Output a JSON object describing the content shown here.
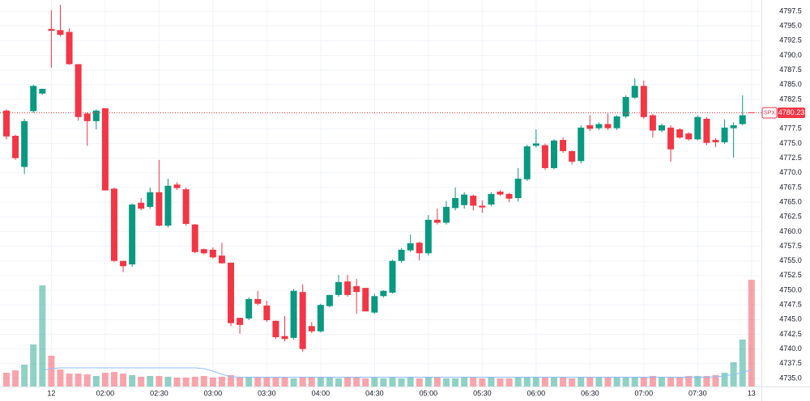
{
  "chart_data": {
    "type": "candlestick",
    "open": [
      4780.6,
      4776.3,
      4771,
      4780.5,
      4783.5,
      4794.5,
      4794.3,
      4794,
      4788.5,
      4780.1,
      4778.8,
      4781,
      4767.3,
      4755,
      4754.4,
      4764.9,
      4764.2,
      4766.7,
      4761,
      4768,
      4767.2,
      4761.2,
      4757,
      4756.9,
      4755.9,
      4754.7,
      4745.3,
      4745.2,
      4748.5,
      4747.4,
      4744.8,
      4742.2,
      4741.9,
      4749.7,
      4743.9,
      4743,
      4747.3,
      4749.2,
      4751.5,
      4750.7,
      4750.4,
      4746.2,
      4749,
      4749.6,
      4755,
      4756.8,
      4758.1,
      4756.3,
      4762,
      4761.5,
      4764,
      4764.5,
      4766.1,
      4764.4,
      4764.6,
      4766.8,
      4766.4,
      4765.7,
      4768.9,
      4774.6,
      4774.7,
      4770.8,
      4775.6,
      4773.7,
      4772,
      4778.1,
      4777.6,
      4778.3,
      4777.6,
      4779.6,
      4782.8,
      4784.8,
      4779.8,
      4777.2,
      4777.7,
      4777.4,
      4776.7,
      4775.7,
      4779.2,
      4775.6,
      4775.2,
      4777.6,
      4778.3,
      4780.3
    ],
    "high": [
      4780.8,
      4776.5,
      4779.2,
      4785,
      4784.3,
      4797.7,
      4798.6,
      4794.6,
      4788.5,
      4780.3,
      4780.8,
      4781,
      4767.5,
      4755,
      4764.8,
      4765.7,
      4767.5,
      4772.2,
      4769,
      4768.4,
      4767.5,
      4761.3,
      4757.1,
      4757.3,
      4758.1,
      4754.7,
      4745.3,
      4748.8,
      4749.9,
      4748.2,
      4744.8,
      4745.6,
      4750.2,
      4751,
      4744.6,
      4747.7,
      4749.2,
      4752.6,
      4752.6,
      4751.9,
      4750.4,
      4749.4,
      4750,
      4755.2,
      4757.2,
      4759.5,
      4758.3,
      4762.8,
      4763.9,
      4765.2,
      4767.5,
      4766.7,
      4766.3,
      4765.3,
      4766.7,
      4767,
      4766.6,
      4770.8,
      4774.8,
      4777.4,
      4775,
      4775.7,
      4776,
      4773.8,
      4778.1,
      4779.8,
      4778.6,
      4780.1,
      4779.8,
      4783.2,
      4786.1,
      4785.7,
      4780,
      4778.4,
      4778.1,
      4777.6,
      4776.9,
      4779.8,
      4779.5,
      4775.9,
      4779.1,
      4778.6,
      4783.2,
      4780.3
    ],
    "low": [
      4775.7,
      4772.2,
      4769.8,
      4780.2,
      4783.3,
      4787.9,
      4793.2,
      4788.4,
      4778.9,
      4774.6,
      4777.4,
      4767,
      4754.8,
      4753.1,
      4754,
      4763.6,
      4763.9,
      4760.9,
      4760.7,
      4767.1,
      4761,
      4756.3,
      4756.1,
      4755.4,
      4754.5,
      4743.9,
      4742.6,
      4744.9,
      4747.4,
      4744.6,
      4741.7,
      4741.3,
      4741.6,
      4739.5,
      4742.7,
      4742.8,
      4747.1,
      4748.9,
      4748.9,
      4746,
      4746.4,
      4746,
      4748.8,
      4749.4,
      4754.7,
      4756.5,
      4755.1,
      4755.9,
      4761.2,
      4761.2,
      4763.6,
      4763.9,
      4763.6,
      4763.2,
      4764.3,
      4766.1,
      4765,
      4765.1,
      4768.6,
      4774.3,
      4770.5,
      4770.6,
      4773.4,
      4771.4,
      4771.6,
      4777.1,
      4777.3,
      4777.3,
      4777.3,
      4779.3,
      4782.6,
      4779.2,
      4776,
      4776.9,
      4771.9,
      4775.8,
      4775.5,
      4775.5,
      4774.7,
      4774.4,
      4774.9,
      4772.6,
      4778.1,
      4780.2
    ],
    "close": [
      4776.2,
      4772.5,
      4778.8,
      4784.8,
      4784.3,
      4794.2,
      4793.5,
      4788.5,
      4779.5,
      4778.8,
      4780.6,
      4767,
      4755,
      4754.1,
      4764.6,
      4763.9,
      4766.7,
      4761,
      4767.8,
      4767.4,
      4761.3,
      4756.5,
      4756.3,
      4755.6,
      4754.6,
      4744.4,
      4744.1,
      4748.5,
      4747.7,
      4744.9,
      4742,
      4741.7,
      4749.9,
      4740,
      4743,
      4747.5,
      4749.2,
      4751.4,
      4749.2,
      4749.7,
      4746.4,
      4749,
      4749.9,
      4755,
      4756.9,
      4758,
      4756.3,
      4762,
      4761.5,
      4764.2,
      4765.7,
      4766.3,
      4764.4,
      4764.1,
      4766.4,
      4766.3,
      4765.6,
      4769,
      4774.5,
      4775,
      4770.8,
      4775.5,
      4773.7,
      4771.9,
      4777.7,
      4777.5,
      4778.3,
      4777.6,
      4779.6,
      4782.9,
      4784.8,
      4779.5,
      4777.2,
      4778.1,
      4774,
      4776,
      4775.7,
      4779.5,
      4775.1,
      4775.2,
      4777.7,
      4778.1,
      4779.8,
      4780.23
    ],
    "volume": [
      17,
      20,
      27,
      52,
      125,
      38,
      21,
      16,
      16,
      15,
      13,
      17,
      18,
      16,
      14,
      12,
      13,
      13,
      12,
      11,
      11,
      12,
      13,
      11,
      12,
      14,
      12,
      11,
      12,
      11,
      12,
      11,
      10,
      11,
      12,
      11,
      12,
      10,
      11,
      11,
      10,
      11,
      10,
      11,
      10,
      11,
      10,
      12,
      11,
      10,
      10,
      11,
      11,
      10,
      11,
      10,
      10,
      11,
      11,
      12,
      11,
      12,
      11,
      10,
      12,
      11,
      12,
      11,
      12,
      12,
      12,
      11,
      13,
      12,
      11,
      12,
      13,
      13,
      13,
      14,
      17,
      30,
      58,
      132
    ],
    "volume_ma": [
      null,
      null,
      null,
      null,
      20,
      22,
      23,
      23,
      23,
      23,
      23,
      23,
      23,
      23,
      23,
      23,
      23,
      23,
      23,
      23,
      23,
      23,
      22,
      19,
      15,
      12,
      11.5,
      11.5,
      11.5,
      11.5,
      11.5,
      11.5,
      11.5,
      11.5,
      11.5,
      11.5,
      11.5,
      11.5,
      11.5,
      11.5,
      11.5,
      11.5,
      11.5,
      11.5,
      11.5,
      11.5,
      11.5,
      11.5,
      11.5,
      11.5,
      11.5,
      11.5,
      11.5,
      11.5,
      11.5,
      11.5,
      11.5,
      11.5,
      11.5,
      11.5,
      11.5,
      11.5,
      11.5,
      11.5,
      11.5,
      11.5,
      11.5,
      11.5,
      11.5,
      11.5,
      11.5,
      11.5,
      11.5,
      11.5,
      11.5,
      11.5,
      11.5,
      11.5,
      11.5,
      12,
      13,
      15,
      17,
      21
    ],
    "volume_lim": [
      0,
      478
    ],
    "up_color": "#089981",
    "down_color": "#f23645",
    "volume_ma_color": "#90bff9",
    "ylim": [
      4733.62,
      4799.43
    ],
    "yticks": [
      {
        "value": 4735,
        "label": "4735.0"
      },
      4737.5,
      {
        "value": 4740,
        "label": "4740.0"
      },
      4742.5,
      {
        "value": 4745,
        "label": "4745.0"
      },
      4747.5,
      {
        "value": 4750,
        "label": "4750.0"
      },
      4752.5,
      {
        "value": 4755,
        "label": "4755.0"
      },
      4757.5,
      {
        "value": 4760,
        "label": "4760.0"
      },
      4762.5,
      {
        "value": 4765,
        "label": "4765.0"
      },
      4767.5,
      {
        "value": 4770,
        "label": "4770.0"
      },
      4772.5,
      {
        "value": 4775,
        "label": "4775.0"
      },
      4777.5,
      {
        "value": 4780,
        "label": "4780.0"
      },
      4782.5,
      {
        "value": 4785,
        "label": "4785.0"
      },
      4787.5,
      {
        "value": 4790,
        "label": "4790.0"
      },
      4792.5,
      {
        "value": 4795,
        "label": "4795.0"
      },
      4797.5
    ],
    "xlim": [
      -0.72,
      84.1
    ],
    "xticks": [
      {
        "value": 5,
        "label": "12"
      },
      {
        "value": 11,
        "label": "02:00"
      },
      {
        "value": 17,
        "label": "02:30"
      },
      {
        "value": 23,
        "label": "03:00"
      },
      {
        "value": 29,
        "label": "03:30"
      },
      {
        "value": 35,
        "label": "04:00"
      },
      {
        "value": 41,
        "label": "04:30"
      },
      {
        "value": 47,
        "label": "05:00"
      },
      {
        "value": 53,
        "label": "05:30"
      },
      {
        "value": 59,
        "label": "06:00"
      },
      {
        "value": 65,
        "label": "06:30"
      },
      {
        "value": 71,
        "label": "07:00"
      },
      {
        "value": 77,
        "label": "07:30"
      },
      {
        "value": 83,
        "label": "13"
      }
    ],
    "grid": true,
    "last_price": {
      "label": "SPX",
      "value": 4780.23
    }
  }
}
